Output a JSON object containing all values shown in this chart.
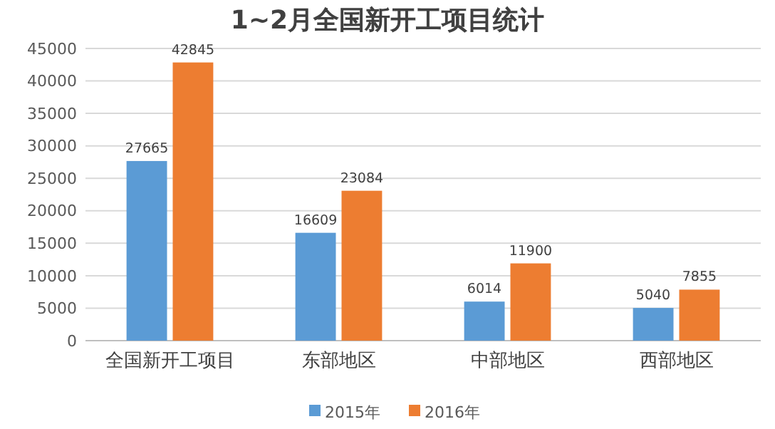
{
  "chart_data": {
    "type": "bar",
    "title": "1~2月全国新开工项目统计",
    "categories": [
      "全国新开工项目",
      "东部地区",
      "中部地区",
      "西部地区"
    ],
    "series": [
      {
        "name": "2015年",
        "color": "#5b9bd5",
        "values": [
          27665,
          16609,
          6014,
          5040
        ]
      },
      {
        "name": "2016年",
        "color": "#ed7d31",
        "values": [
          42845,
          23084,
          11900,
          7855
        ]
      }
    ],
    "ylim": [
      0,
      45000
    ],
    "yticks": [
      0,
      5000,
      10000,
      15000,
      20000,
      25000,
      30000,
      35000,
      40000,
      45000
    ],
    "grid": "y",
    "legend": "bottom",
    "data_labels": true
  }
}
